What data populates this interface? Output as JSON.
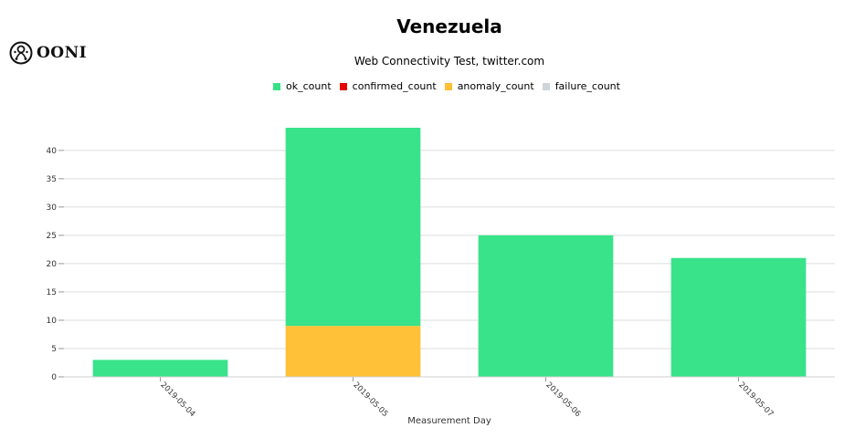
{
  "logo": {
    "text": "OONI"
  },
  "chart_data": {
    "type": "bar",
    "stacked": true,
    "title": "Venezuela",
    "subtitle": "Web Connectivity Test, twitter.com",
    "xlabel": "Measurement Day",
    "ylabel": "",
    "categories": [
      "2019-05-04",
      "2019-05-05",
      "2019-05-06",
      "2019-05-07"
    ],
    "series": [
      {
        "name": "ok_count",
        "color": "#34e288",
        "values": [
          3,
          35,
          25,
          21
        ]
      },
      {
        "name": "confirmed_count",
        "color": "#e60000",
        "values": [
          0,
          0,
          0,
          0
        ]
      },
      {
        "name": "anomaly_count",
        "color": "#ffc034",
        "values": [
          0,
          9,
          0,
          0
        ]
      },
      {
        "name": "failure_count",
        "color": "#ced4da",
        "values": [
          0,
          0,
          0,
          0
        ]
      }
    ],
    "stack_order": [
      "anomaly_count",
      "ok_count"
    ],
    "yticks": [
      0,
      5,
      10,
      15,
      20,
      25,
      30,
      35,
      40
    ],
    "ylim": [
      0,
      44
    ],
    "grid": true,
    "legend_position": "top"
  }
}
